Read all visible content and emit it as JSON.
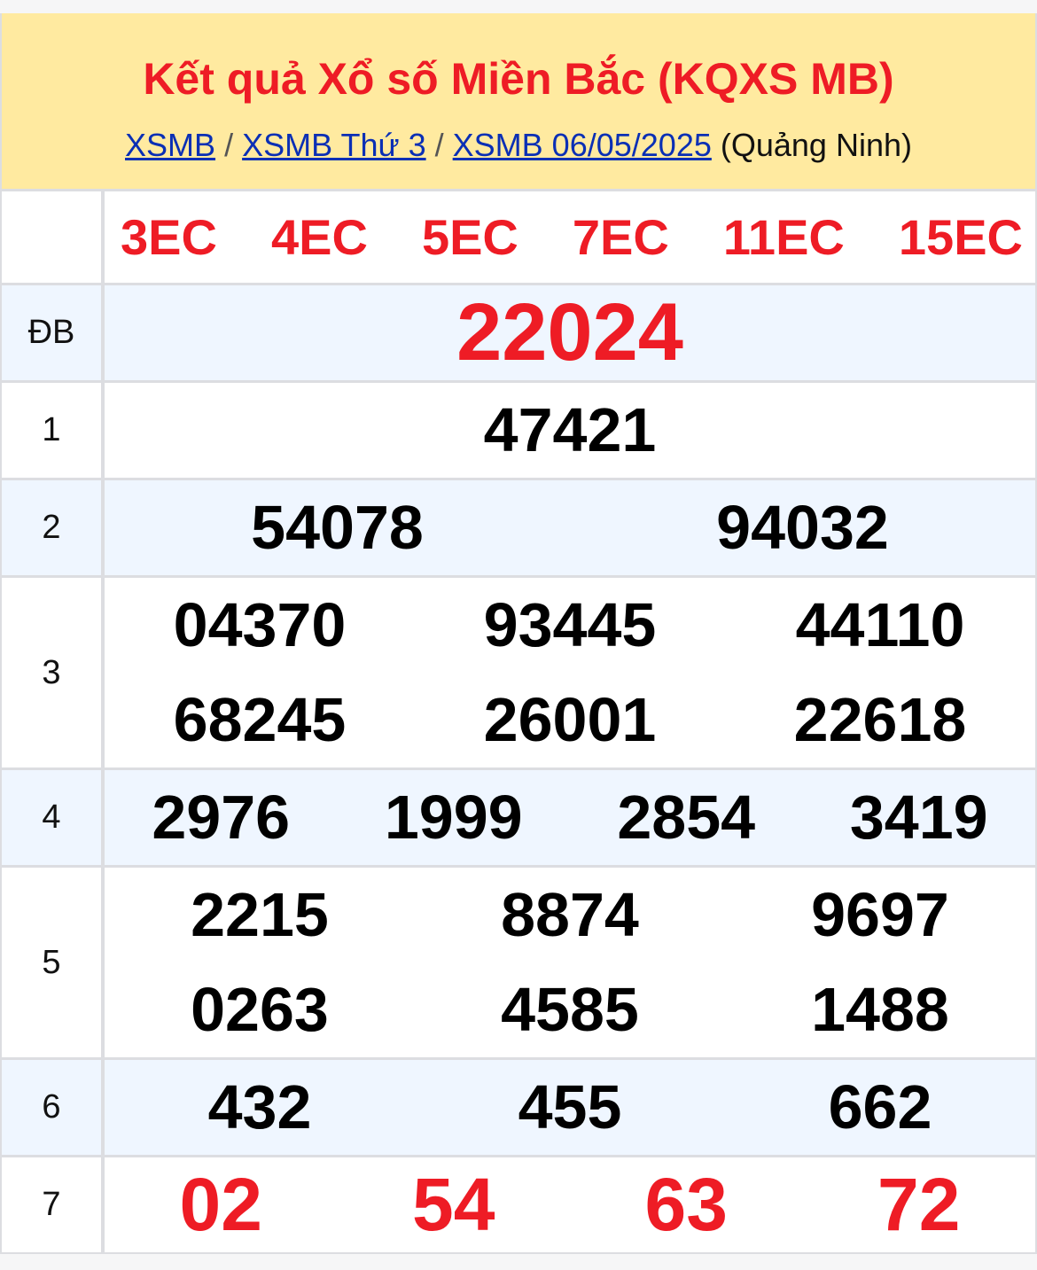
{
  "header": {
    "title": "Kết quả Xổ số Miền Bắc (KQXS MB)",
    "breadcrumbs": [
      {
        "label": "XSMB"
      },
      {
        "label": "XSMB Thứ 3"
      },
      {
        "label": "XSMB 06/05/2025"
      }
    ],
    "separator": "/",
    "province": "(Quảng Ninh)"
  },
  "codes": [
    "3EC",
    "4EC",
    "5EC",
    "7EC",
    "11EC",
    "15EC"
  ],
  "prizes": {
    "db": {
      "label": "ĐB",
      "numbers": [
        "22024"
      ]
    },
    "g1": {
      "label": "1",
      "numbers": [
        "47421"
      ]
    },
    "g2": {
      "label": "2",
      "numbers": [
        "54078",
        "94032"
      ]
    },
    "g3": {
      "label": "3",
      "numbers": [
        "04370",
        "93445",
        "44110",
        "68245",
        "26001",
        "22618"
      ]
    },
    "g4": {
      "label": "4",
      "numbers": [
        "2976",
        "1999",
        "2854",
        "3419"
      ]
    },
    "g5": {
      "label": "5",
      "numbers": [
        "2215",
        "8874",
        "9697",
        "0263",
        "4585",
        "1488"
      ]
    },
    "g6": {
      "label": "6",
      "numbers": [
        "432",
        "455",
        "662"
      ]
    },
    "g7": {
      "label": "7",
      "numbers": [
        "02",
        "54",
        "63",
        "72"
      ]
    }
  },
  "colors": {
    "accent_red": "#ee1c25",
    "link_blue": "#0a2fb5",
    "header_bg": "#ffeaa0",
    "alt_row_bg": "#eff6ff"
  }
}
